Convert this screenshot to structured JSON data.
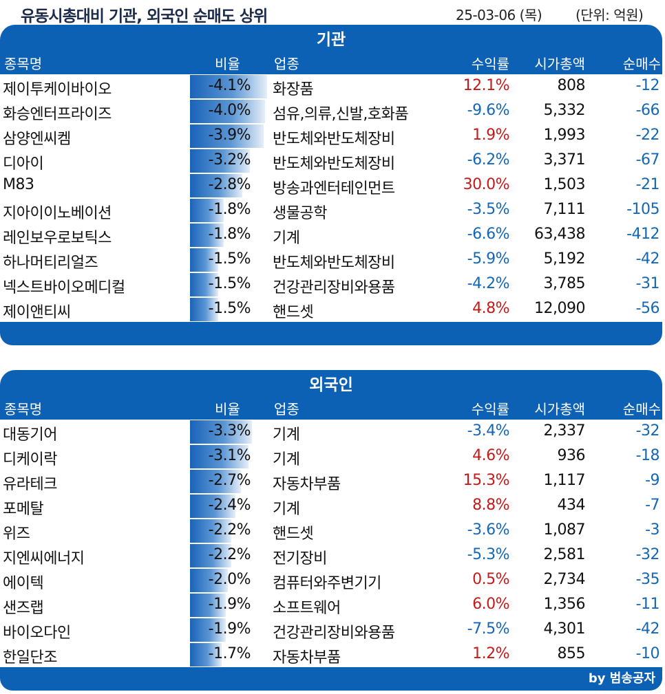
{
  "header": {
    "title": "유동시총대비 기관, 외국인 순매도 상위",
    "date": "25-03-06 (목)",
    "unit": "(단위: 억원)"
  },
  "columns": {
    "name": "종목명",
    "ratio": "비율",
    "industry": "업종",
    "return": "수익률",
    "market_cap": "시가총액",
    "net_sell": "순매수"
  },
  "colors": {
    "band": "#0d61b5",
    "positive": "#c41a1a",
    "negative": "#1467b4"
  },
  "sections": [
    {
      "title": "기관",
      "rows": [
        {
          "name": "제이투케이바이오",
          "ratio": "-4.1%",
          "ratio_value": 4.1,
          "industry": "화장품",
          "return": "12.1%",
          "cap": "808",
          "net": "-12"
        },
        {
          "name": "화승엔터프라이즈",
          "ratio": "-4.0%",
          "ratio_value": 4.0,
          "industry": "섬유,의류,신발,호화품",
          "return": "-9.6%",
          "cap": "5,332",
          "net": "-66"
        },
        {
          "name": "삼양엔씨켐",
          "ratio": "-3.9%",
          "ratio_value": 3.9,
          "industry": "반도체와반도체장비",
          "return": "1.9%",
          "cap": "1,993",
          "net": "-22"
        },
        {
          "name": "디아이",
          "ratio": "-3.2%",
          "ratio_value": 3.2,
          "industry": "반도체와반도체장비",
          "return": "-6.2%",
          "cap": "3,371",
          "net": "-67"
        },
        {
          "name": "M83",
          "ratio": "-2.8%",
          "ratio_value": 2.8,
          "industry": "방송과엔터테인먼트",
          "return": "30.0%",
          "cap": "1,503",
          "net": "-21"
        },
        {
          "name": "지아이이노베이션",
          "ratio": "-1.8%",
          "ratio_value": 1.8,
          "industry": "생물공학",
          "return": "-3.5%",
          "cap": "7,111",
          "net": "-105"
        },
        {
          "name": "레인보우로보틱스",
          "ratio": "-1.8%",
          "ratio_value": 1.8,
          "industry": "기계",
          "return": "-6.6%",
          "cap": "63,438",
          "net": "-412"
        },
        {
          "name": "하나머티리얼즈",
          "ratio": "-1.5%",
          "ratio_value": 1.5,
          "industry": "반도체와반도체장비",
          "return": "-5.9%",
          "cap": "5,192",
          "net": "-42"
        },
        {
          "name": "넥스트바이오메디컬",
          "ratio": "-1.5%",
          "ratio_value": 1.5,
          "industry": "건강관리장비와용품",
          "return": "-4.2%",
          "cap": "3,785",
          "net": "-31"
        },
        {
          "name": "제이앤티씨",
          "ratio": "-1.5%",
          "ratio_value": 1.5,
          "industry": "핸드셋",
          "return": "4.8%",
          "cap": "12,090",
          "net": "-56"
        }
      ]
    },
    {
      "title": "외국인",
      "rows": [
        {
          "name": "대동기어",
          "ratio": "-3.3%",
          "ratio_value": 3.3,
          "industry": "기계",
          "return": "-3.4%",
          "cap": "2,337",
          "net": "-32"
        },
        {
          "name": "디케이락",
          "ratio": "-3.1%",
          "ratio_value": 3.1,
          "industry": "기계",
          "return": "4.6%",
          "cap": "936",
          "net": "-18"
        },
        {
          "name": "유라테크",
          "ratio": "-2.7%",
          "ratio_value": 2.7,
          "industry": "자동차부품",
          "return": "15.3%",
          "cap": "1,117",
          "net": "-9"
        },
        {
          "name": "포메탈",
          "ratio": "-2.4%",
          "ratio_value": 2.4,
          "industry": "기계",
          "return": "8.8%",
          "cap": "434",
          "net": "-7"
        },
        {
          "name": "위즈",
          "ratio": "-2.2%",
          "ratio_value": 2.2,
          "industry": "핸드셋",
          "return": "-3.6%",
          "cap": "1,087",
          "net": "-3"
        },
        {
          "name": "지엔씨에너지",
          "ratio": "-2.2%",
          "ratio_value": 2.2,
          "industry": "전기장비",
          "return": "-5.3%",
          "cap": "2,581",
          "net": "-32"
        },
        {
          "name": "에이텍",
          "ratio": "-2.0%",
          "ratio_value": 2.0,
          "industry": "컴퓨터와주변기기",
          "return": "0.5%",
          "cap": "2,734",
          "net": "-35"
        },
        {
          "name": "샌즈랩",
          "ratio": "-1.9%",
          "ratio_value": 1.9,
          "industry": "소프트웨어",
          "return": "6.0%",
          "cap": "1,356",
          "net": "-11"
        },
        {
          "name": "바이오다인",
          "ratio": "-1.9%",
          "ratio_value": 1.9,
          "industry": "건강관리장비와용품",
          "return": "-7.5%",
          "cap": "4,301",
          "net": "-42"
        },
        {
          "name": "한일단조",
          "ratio": "-1.7%",
          "ratio_value": 1.7,
          "industry": "자동차부품",
          "return": "1.2%",
          "cap": "855",
          "net": "-10"
        }
      ]
    }
  ],
  "footer": {
    "credit": "by 범송공자"
  }
}
